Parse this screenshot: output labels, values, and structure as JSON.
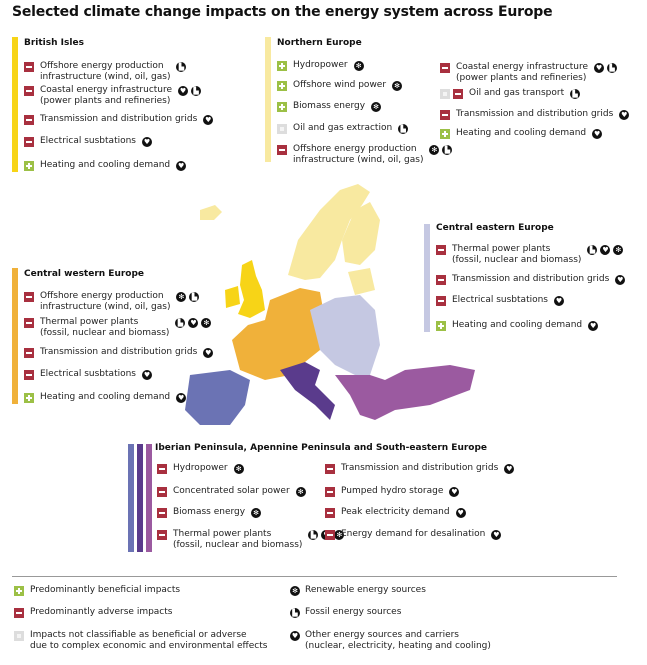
{
  "title": "Selected climate change impacts on the energy system across Europe",
  "colors": {
    "british_isles": "#f7d417",
    "northern_europe": "#f8e9a0",
    "central_western": "#f0b13a",
    "central_eastern": "#c5c8e2",
    "iberian": "#6b73b4",
    "apennine": "#5a3b8c",
    "south_eastern": "#9b5aa0",
    "adverse": "#a8303f",
    "beneficial": "#9cc046"
  },
  "regions": {
    "british_isles": {
      "title": "British Isles",
      "items": [
        {
          "type": "adverse",
          "label": "Offshore energy production\ninfrastructure (wind, oil, gas)",
          "icons": [
            "fossil"
          ]
        },
        {
          "type": "adverse",
          "label": "Coastal energy infrastructure\n(power plants and refineries)",
          "icons": [
            "other",
            "fossil"
          ]
        },
        {
          "type": "adverse",
          "label": "Transmission and distribution grids",
          "icons": [
            "other"
          ]
        },
        {
          "type": "adverse",
          "label": "Electrical susbtations",
          "icons": [
            "other"
          ]
        },
        {
          "type": "beneficial",
          "label": "Heating and cooling demand",
          "icons": [
            "other"
          ]
        }
      ]
    },
    "northern_europe": {
      "title": "Northern Europe",
      "items": [
        {
          "type": "beneficial",
          "label": "Hydropower",
          "icons": [
            "renewable"
          ]
        },
        {
          "type": "beneficial",
          "label": "Offshore wind power",
          "icons": [
            "renewable"
          ]
        },
        {
          "type": "beneficial",
          "label": "Biomass energy",
          "icons": [
            "renewable"
          ]
        },
        {
          "type": "neutral",
          "label": "Oil and gas extraction",
          "icons": [
            "fossil"
          ]
        },
        {
          "type": "adverse",
          "label": "Offshore energy production\ninfrastructure (wind, oil, gas)",
          "icons": [
            "renewable",
            "fossil"
          ]
        },
        {
          "type": "adverse",
          "label": "Coastal energy infrastructure\n(power plants and refineries)",
          "icons": [
            "other",
            "fossil"
          ]
        },
        {
          "type": "neutral+adverse",
          "label": "Oil and gas transport",
          "icons": [
            "fossil"
          ]
        },
        {
          "type": "adverse",
          "label": "Transmission and distribution grids",
          "icons": [
            "other"
          ]
        },
        {
          "type": "beneficial",
          "label": "Heating and cooling demand",
          "icons": [
            "other"
          ]
        }
      ]
    },
    "central_eastern": {
      "title": "Central eastern Europe",
      "items": [
        {
          "type": "adverse",
          "label": "Thermal power plants\n(fossil, nuclear and biomass)",
          "icons": [
            "fossil",
            "other",
            "renewable"
          ]
        },
        {
          "type": "adverse",
          "label": "Transmission and distribution grids",
          "icons": [
            "other"
          ]
        },
        {
          "type": "adverse",
          "label": "Electrical susbtations",
          "icons": [
            "other"
          ]
        },
        {
          "type": "beneficial",
          "label": "Heating and cooling demand",
          "icons": [
            "other"
          ]
        }
      ]
    },
    "central_western": {
      "title": "Central western Europe",
      "items": [
        {
          "type": "adverse",
          "label": "Offshore energy production\ninfrastructure (wind, oil, gas)",
          "icons": [
            "renewable",
            "fossil"
          ]
        },
        {
          "type": "adverse",
          "label": "Thermal power plants\n(fossil, nuclear and biomass)",
          "icons": [
            "fossil",
            "other",
            "renewable"
          ]
        },
        {
          "type": "adverse",
          "label": "Transmission and distribution grids",
          "icons": [
            "other"
          ]
        },
        {
          "type": "adverse",
          "label": "Electrical susbtations",
          "icons": [
            "other"
          ]
        },
        {
          "type": "beneficial",
          "label": "Heating and cooling demand",
          "icons": [
            "other"
          ]
        }
      ]
    },
    "southern": {
      "title": "Iberian Peninsula, Apennine Peninsula and South-eastern Europe",
      "items": [
        {
          "type": "adverse",
          "label": "Hydropower",
          "icons": [
            "renewable"
          ]
        },
        {
          "type": "adverse",
          "label": "Concentrated solar power",
          "icons": [
            "renewable"
          ]
        },
        {
          "type": "adverse",
          "label": "Biomass energy",
          "icons": [
            "renewable"
          ]
        },
        {
          "type": "adverse",
          "label": "Thermal power plants\n(fossil, nuclear and biomass)",
          "icons": [
            "fossil",
            "other",
            "renewable"
          ]
        },
        {
          "type": "adverse",
          "label": "Transmission and distribution grids",
          "icons": [
            "other"
          ]
        },
        {
          "type": "adverse",
          "label": "Pumped hydro storage",
          "icons": [
            "other"
          ]
        },
        {
          "type": "adverse",
          "label": "Peak electricity demand",
          "icons": [
            "other"
          ]
        },
        {
          "type": "adverse",
          "label": "Energy demand for desalination",
          "icons": [
            "other"
          ]
        }
      ]
    }
  },
  "legend": [
    {
      "type": "beneficial",
      "label": "Predominantly beneficial impacts"
    },
    {
      "type": "adverse",
      "label": "Predominantly adverse impacts"
    },
    {
      "type": "neutral",
      "label": "Impacts not classifiable as beneficial or adverse\ndue to complex economic and environmental effects"
    },
    {
      "icon": "renewable",
      "label": "Renewable energy sources"
    },
    {
      "icon": "fossil",
      "label": "Fossil energy sources"
    },
    {
      "icon": "other",
      "label": "Other energy sources and carriers\n(nuclear, electricity, heating and cooling)"
    }
  ]
}
